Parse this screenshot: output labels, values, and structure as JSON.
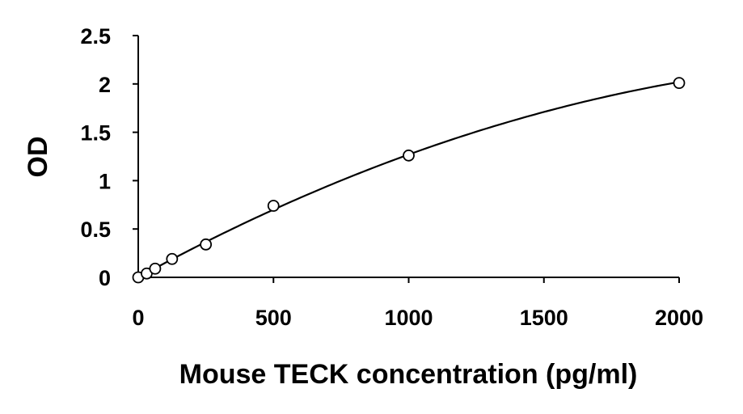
{
  "chart_data": {
    "type": "scatter",
    "title": "",
    "xlabel": "Mouse TECK concentration (pg/ml)",
    "ylabel": "OD",
    "xlim": [
      0,
      2000
    ],
    "ylim": [
      0,
      2.5
    ],
    "xticks": [
      0,
      500,
      1000,
      1500,
      2000
    ],
    "yticks": [
      0,
      0.5,
      1,
      1.5,
      2,
      2.5
    ],
    "xtick_labels": [
      "0",
      "500",
      "1000",
      "1500",
      "2000"
    ],
    "ytick_labels": [
      "0",
      "0.5",
      "1",
      "1.5",
      "2",
      "2.5"
    ],
    "grid": false,
    "legend": "none",
    "series": [
      {
        "marker": "open-circle",
        "x": [
          0,
          31.25,
          62.5,
          125,
          250,
          500,
          1000,
          2000
        ],
        "y": [
          0.0,
          0.04,
          0.09,
          0.19,
          0.34,
          0.74,
          1.26,
          2.01
        ]
      }
    ],
    "fit_curve": {
      "type": "polynomial",
      "coefficients": [
        0.0,
        0.00153,
        -2.6e-07
      ]
    }
  }
}
